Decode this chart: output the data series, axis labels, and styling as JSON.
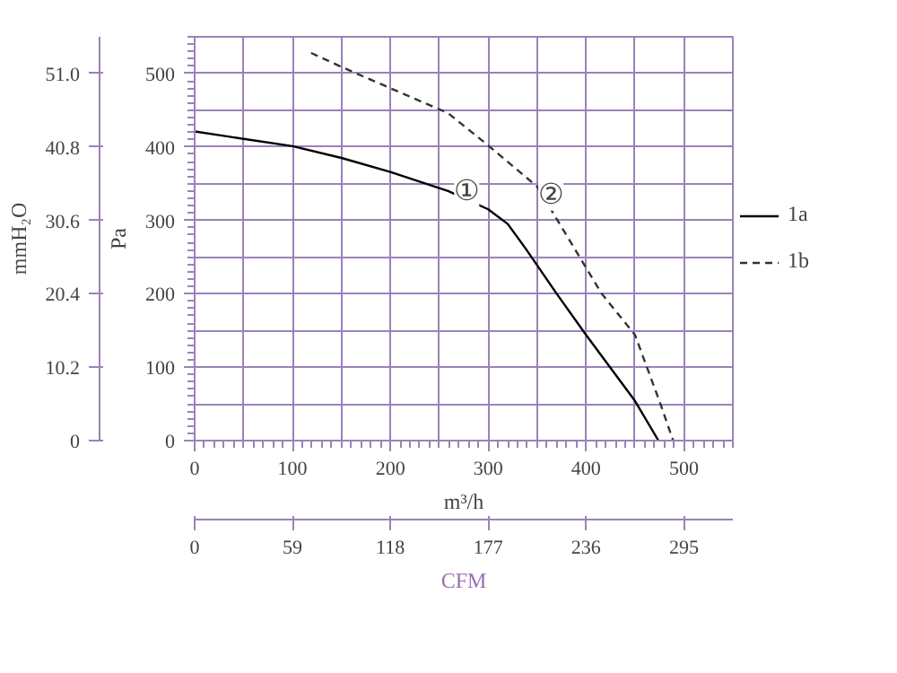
{
  "chart_data": {
    "type": "line",
    "xlabel": "m³/h",
    "ylabel": "Pa",
    "y2label": "mmH₂O",
    "x2label": "CFM",
    "xlim": [
      0,
      550
    ],
    "xticks": [
      0,
      100,
      200,
      300,
      400,
      500
    ],
    "ylim": [
      0,
      550
    ],
    "yticks": [
      0,
      100,
      200,
      300,
      400,
      500
    ],
    "y2lim": [
      0,
      56.1
    ],
    "y2ticks": [
      0,
      10.2,
      20.4,
      30.6,
      40.8,
      {
        "value": 51,
        "label": "51.0"
      }
    ],
    "x2lim": [
      0,
      324.5
    ],
    "x2ticks": [
      0,
      59,
      118,
      177,
      236,
      295
    ],
    "grid": true,
    "legend": "right",
    "series": [
      {
        "name": "1a",
        "color": "#000000",
        "line_style": "solid",
        "x": [
          0,
          50,
          100,
          150,
          200,
          259,
          300,
          320,
          338,
          370,
          400,
          450,
          474
        ],
        "values": [
          421,
          411,
          401,
          385,
          366,
          340,
          315,
          295,
          262,
          200,
          144,
          54,
          0
        ]
      },
      {
        "name": "1b",
        "color": "#333333",
        "line_style": "dashed",
        "x": [
          119,
          150,
          200,
          259,
          300,
          350,
          388,
          416,
          450,
          476,
          489
        ],
        "values": [
          528,
          509,
          480,
          446,
          402,
          346,
          262,
          200,
          144,
          50,
          0
        ]
      }
    ],
    "annotations": [
      {
        "text": "①",
        "x": 278,
        "y": 339
      },
      {
        "text": "②",
        "x": 364,
        "y": 334
      }
    ]
  }
}
